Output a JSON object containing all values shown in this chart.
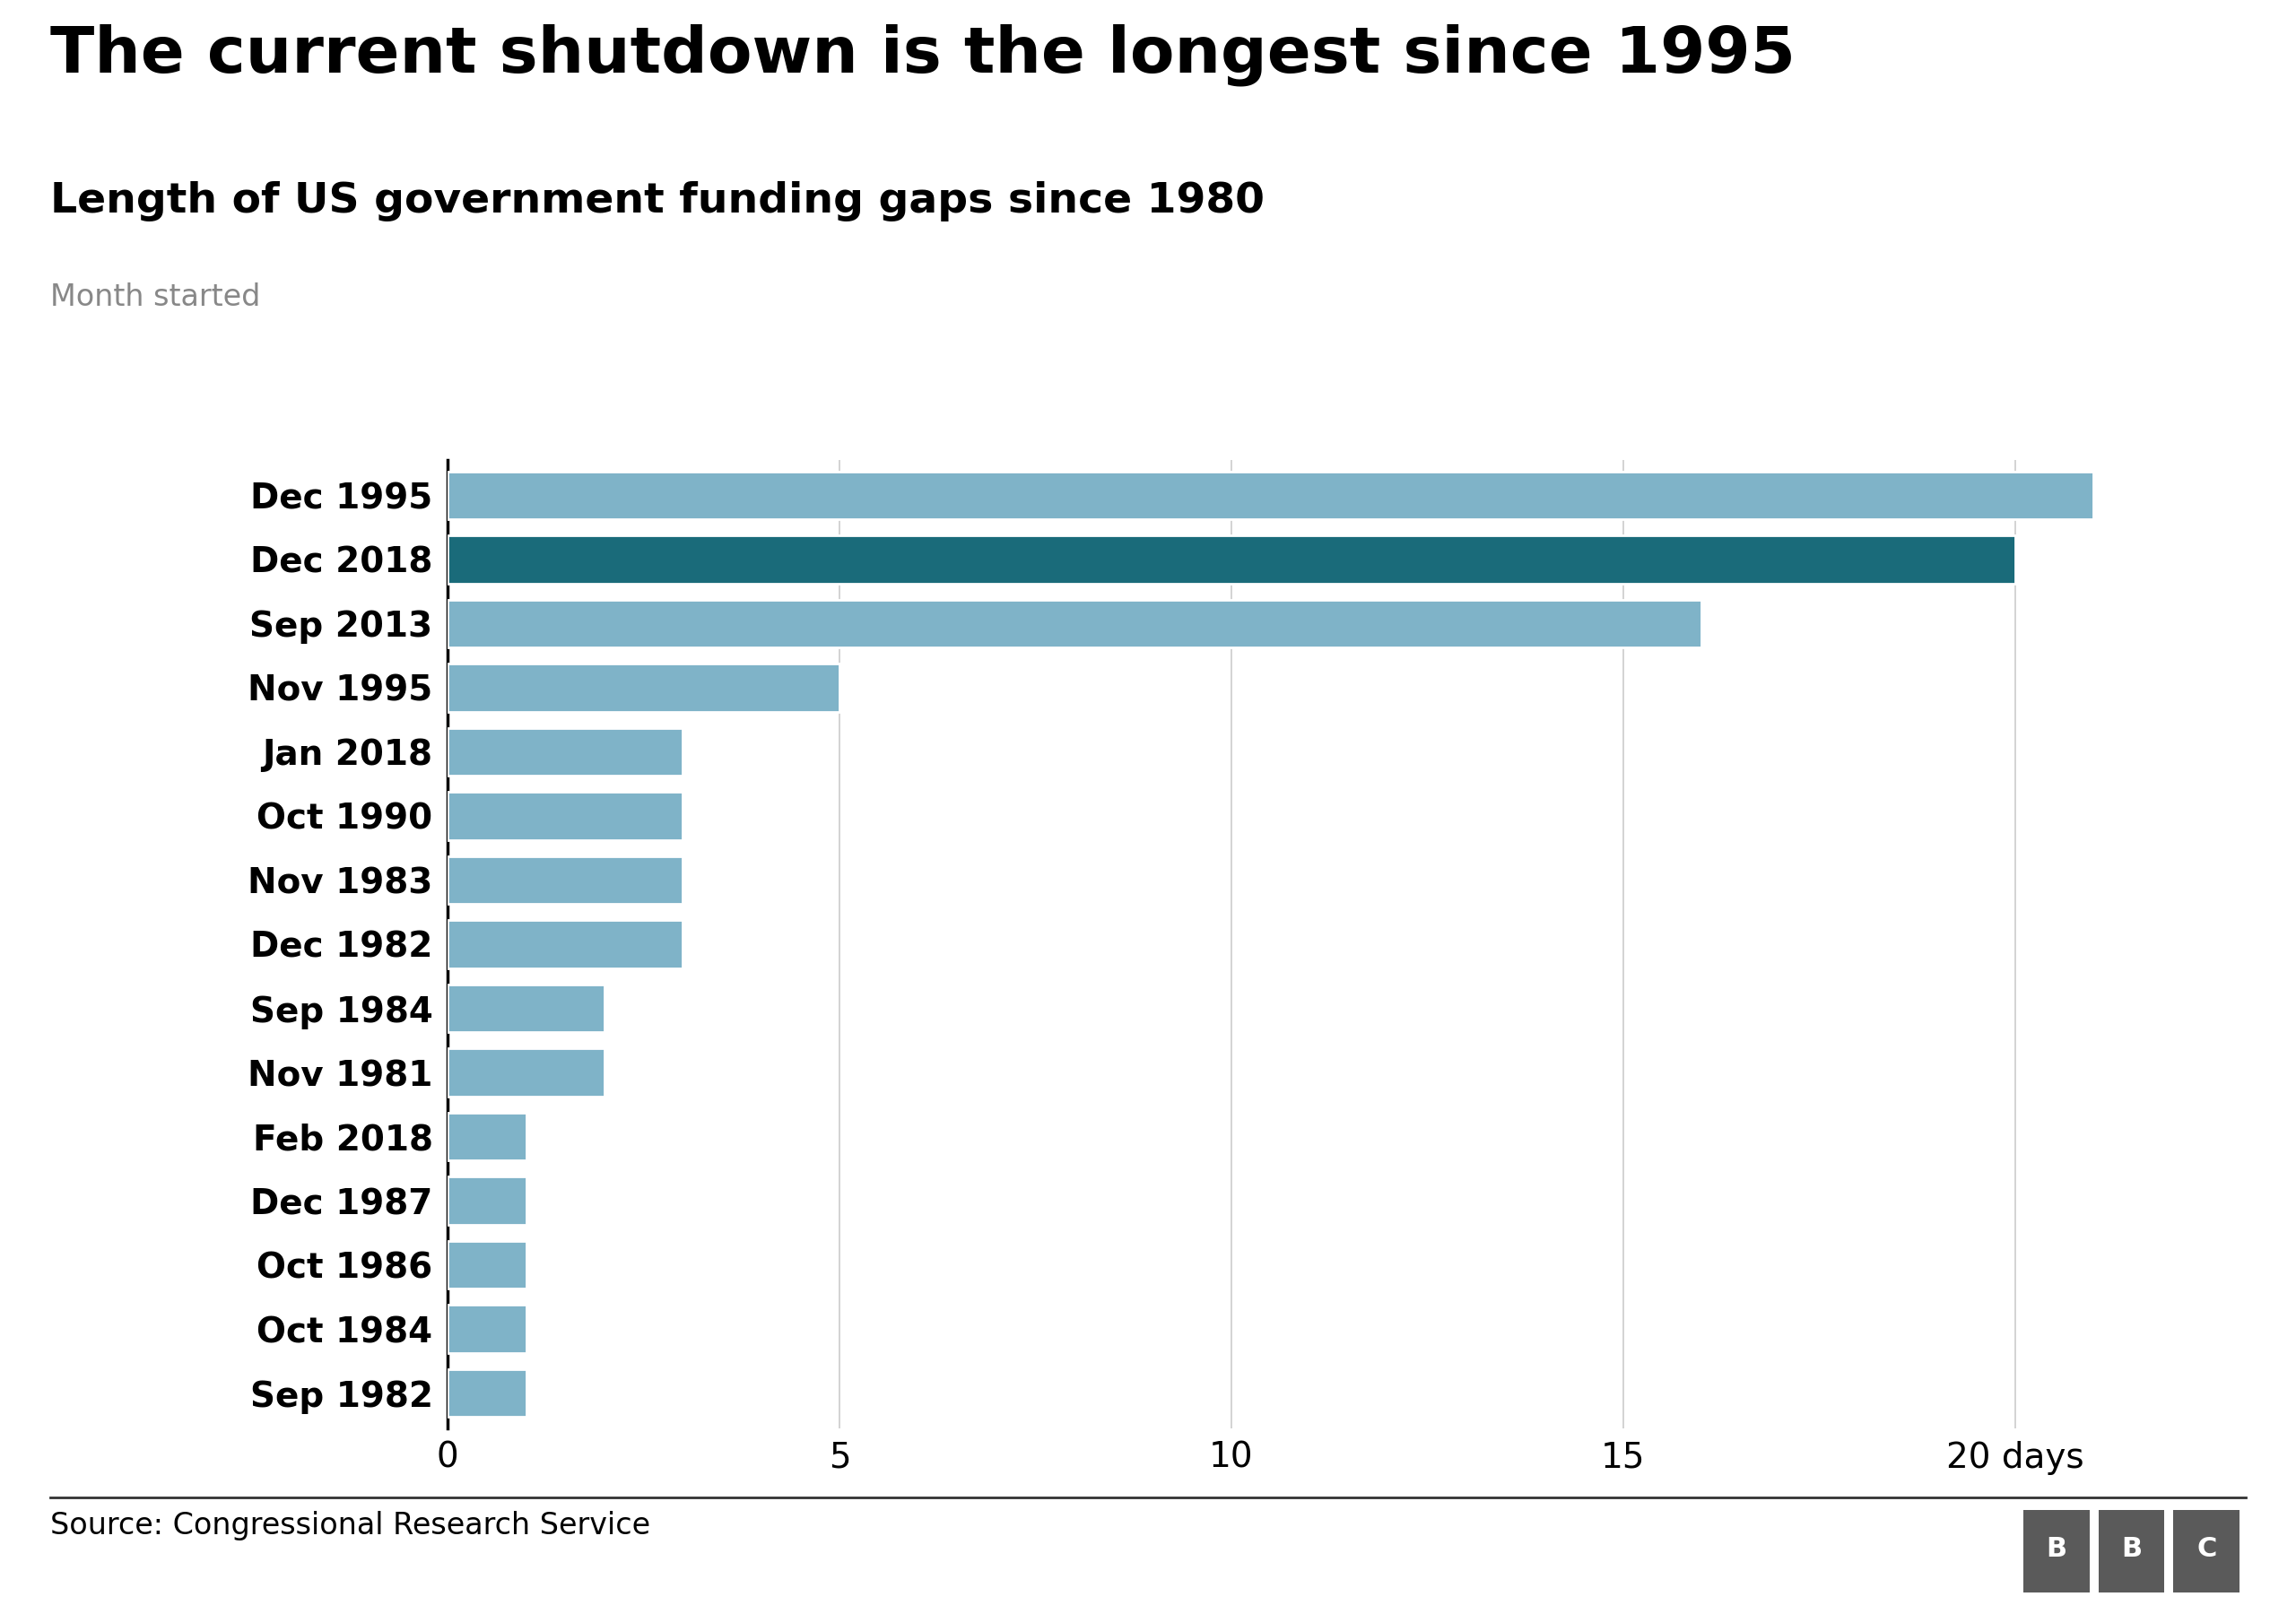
{
  "title": "The current shutdown is the longest since 1995",
  "subtitle": "Length of US government funding gaps since 1980",
  "axis_label": "Month started",
  "source": "Source: Congressional Research Service",
  "categories": [
    "Dec 1995",
    "Dec 2018",
    "Sep 2013",
    "Nov 1995",
    "Jan 2018",
    "Oct 1990",
    "Nov 1983",
    "Dec 1982",
    "Sep 1984",
    "Nov 1981",
    "Feb 2018",
    "Dec 1987",
    "Oct 1986",
    "Oct 1984",
    "Sep 1982"
  ],
  "values": [
    21,
    20,
    16,
    5,
    3,
    3,
    3,
    3,
    2,
    2,
    1,
    1,
    1,
    1,
    1
  ],
  "bar_colors": [
    "#7fb3c8",
    "#1a6b7a",
    "#7fb3c8",
    "#7fb3c8",
    "#7fb3c8",
    "#7fb3c8",
    "#7fb3c8",
    "#7fb3c8",
    "#7fb3c8",
    "#7fb3c8",
    "#7fb3c8",
    "#7fb3c8",
    "#7fb3c8",
    "#7fb3c8",
    "#7fb3c8"
  ],
  "xlim": [
    0,
    23
  ],
  "xticks": [
    0,
    5,
    10,
    15,
    20
  ],
  "xtick_labels": [
    "0",
    "5",
    "10",
    "15",
    "20 days"
  ],
  "background_color": "#ffffff",
  "title_fontsize": 52,
  "subtitle_fontsize": 34,
  "axis_label_fontsize": 24,
  "tick_fontsize": 28,
  "source_fontsize": 24,
  "bar_height": 0.75,
  "grid_color": "#cccccc",
  "bbc_bg": "#5a5a5a",
  "separator_color": "#333333"
}
